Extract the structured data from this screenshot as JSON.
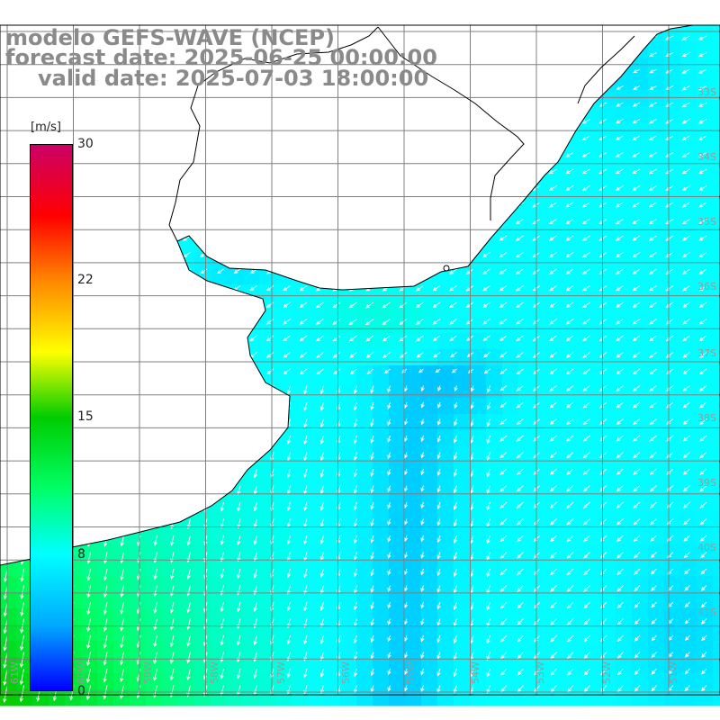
{
  "titles": {
    "model": "modelo GEFS-WAVE (NCEP)",
    "forecast": "forecast date: 2025-06-25 00:00:00",
    "valid": "valid date: 2025-07-03 18:00:00"
  },
  "colorbar": {
    "unit": "[m/s]",
    "ticks": [
      "30",
      "22",
      "15",
      "8",
      "0"
    ],
    "tick_values": [
      30,
      22,
      15,
      8,
      0
    ],
    "min": 0,
    "max": 30,
    "colors": [
      "#0000ff",
      "#00aaff",
      "#00ffff",
      "#00ff66",
      "#00cc00",
      "#ffff00",
      "#ff8800",
      "#ff0000",
      "#cc0066"
    ]
  },
  "graticule": {
    "lat_labels": [
      "33S",
      "34S",
      "35S",
      "36S",
      "37S",
      "38S",
      "39S",
      "40S",
      "41S"
    ],
    "lon_labels": [
      "61W",
      "60W",
      "59W",
      "58W",
      "57W",
      "56W",
      "55W",
      "54W",
      "53W",
      "52W",
      "51W"
    ]
  },
  "colors": {
    "background": "#ffffff",
    "title": "#8a8a8a",
    "grid": "#808080",
    "coast": "#000000",
    "arrow": "#ffffff"
  },
  "field": {
    "wind_direction": "south-westward (from NE)",
    "max_speed_region": "south-west, ~14-16 m/s",
    "min_speed_region": "central-east channel, ~5-6 m/s"
  }
}
